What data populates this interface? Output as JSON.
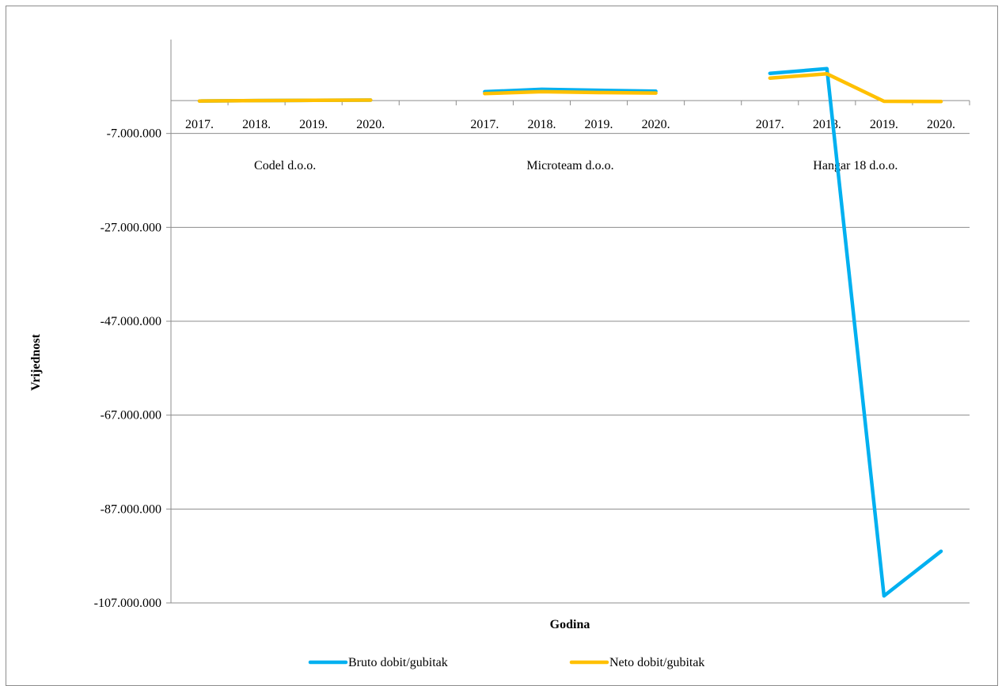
{
  "chart_data": {
    "type": "line",
    "xlabel": "Godina",
    "ylabel": "Vrijednost",
    "ylim": [
      -107000000,
      13000000
    ],
    "yticks": [
      {
        "value": -7000000,
        "label": "-7.000.000"
      },
      {
        "value": -27000000,
        "label": "-27.000.000"
      },
      {
        "value": -47000000,
        "label": "-47.000.000"
      },
      {
        "value": -67000000,
        "label": "-67.000.000"
      },
      {
        "value": -87000000,
        "label": "-87.000.000"
      },
      {
        "value": -107000000,
        "label": "-107.000.000"
      }
    ],
    "grid": true,
    "legend_position": "bottom",
    "groups": [
      {
        "name": "Codel d.o.o.",
        "categories": [
          "2017.",
          "2018.",
          "2019.",
          "2020."
        ]
      },
      {
        "name": "Microteam d.o.o.",
        "categories": [
          "2017.",
          "2018.",
          "2019.",
          "2020."
        ]
      },
      {
        "name": "Hangar 18 d.o.o.",
        "categories": [
          "2017.",
          "2018.",
          "2019.",
          "2020."
        ]
      }
    ],
    "series": [
      {
        "name": "Bruto dobit/gubitak",
        "color": "#00b0f0",
        "groups": [
          [
            -100000,
            0,
            50000,
            100000
          ],
          [
            1900000,
            2400000,
            2200000,
            2000000
          ],
          [
            5800000,
            6800000,
            -105500000,
            -96000000
          ]
        ]
      },
      {
        "name": "Neto dobit/gubitak",
        "color": "#ffc000",
        "groups": [
          [
            -100000,
            0,
            50000,
            100000
          ],
          [
            1500000,
            1900000,
            1700000,
            1600000
          ],
          [
            4800000,
            5700000,
            -150000,
            -200000
          ]
        ]
      }
    ]
  }
}
